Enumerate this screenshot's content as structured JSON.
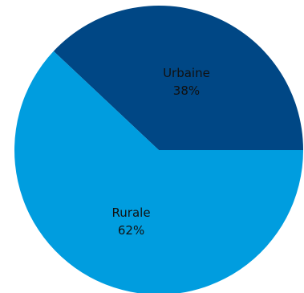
{
  "chart_data": {
    "type": "pie",
    "title": "",
    "slices": [
      {
        "label": "Urbaine",
        "value": 38,
        "value_label": "38%",
        "color": "#004785"
      },
      {
        "label": "Rurale",
        "value": 62,
        "value_label": "62%",
        "color": "#009ddf"
      }
    ]
  }
}
